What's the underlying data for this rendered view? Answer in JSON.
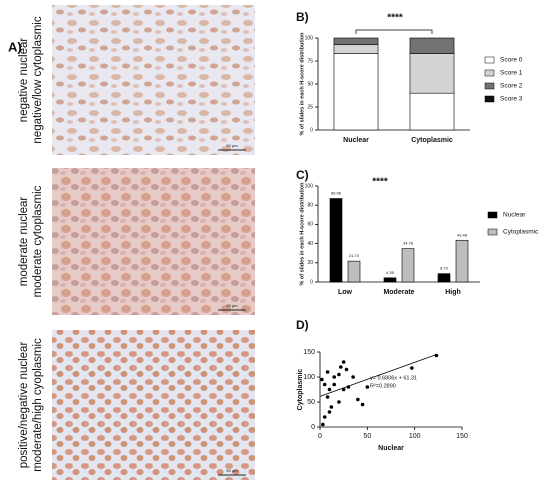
{
  "panel_a": {
    "label": "A)",
    "images": [
      {
        "caption": [
          "negative nuclear",
          "negative/low cytoplasmic"
        ],
        "scale_bar": "50 µm"
      },
      {
        "caption": [
          "moderate nuclear",
          "moderate cytoplasmic"
        ],
        "scale_bar": "50 µm"
      },
      {
        "caption": [
          "positive/negative nuclear",
          "moderate/high cyoplasmic"
        ],
        "scale_bar": "50 µm"
      }
    ]
  },
  "chart_data": [
    {
      "type": "stacked_bar",
      "panel_label": "B)",
      "annotation": "****",
      "y_label": "% of slides in each H-score distribution",
      "categories": [
        "Nuclear",
        "Cytoplasmic"
      ],
      "series": [
        {
          "name": "Score 0",
          "color": "#ffffff",
          "values": [
            83,
            40
          ]
        },
        {
          "name": "Score 1",
          "color": "#d4d4d4",
          "values": [
            10,
            43
          ]
        },
        {
          "name": "Score 2",
          "color": "#737373",
          "values": [
            7,
            17
          ]
        },
        {
          "name": "Score 3",
          "color": "#111111",
          "values": [
            0,
            0
          ]
        }
      ],
      "ylim": [
        0,
        100
      ],
      "yticks": [
        0,
        25,
        50,
        75,
        100
      ]
    },
    {
      "type": "bar",
      "panel_label": "C)",
      "annotation": "****",
      "y_label": "% of slides in each H-score distribution",
      "categories": [
        "Low",
        "Moderate",
        "High"
      ],
      "series": [
        {
          "name": "Nuclear",
          "color": "#000000",
          "values": [
            86.96,
            4.35,
            8.7
          ],
          "value_labels": [
            "86.96",
            "4.35",
            "8.70"
          ]
        },
        {
          "name": "Cytoplasmic",
          "color": "#bdbdbd",
          "values": [
            21.74,
            34.78,
            43.48
          ],
          "value_labels": [
            "21.74",
            "34.78",
            "43.48"
          ]
        }
      ],
      "ylim": [
        0,
        100
      ],
      "yticks": [
        0,
        20,
        40,
        60,
        80,
        100
      ]
    },
    {
      "type": "scatter",
      "panel_label": "D)",
      "x_label": "Nuclear",
      "y_label": "Cytoplasmic",
      "x": [
        3,
        5,
        2,
        8,
        10,
        10,
        12,
        15,
        15,
        20,
        22,
        25,
        28,
        20,
        25,
        30,
        35,
        40,
        45,
        50,
        97,
        123,
        5,
        8
      ],
      "y": [
        5,
        20,
        95,
        60,
        30,
        75,
        40,
        85,
        100,
        105,
        120,
        130,
        115,
        50,
        75,
        80,
        100,
        55,
        45,
        80,
        118,
        143,
        85,
        110
      ],
      "color": "#000000",
      "trendline": {
        "slope": 0.6806,
        "intercept": 61.31
      },
      "annotations": [
        "y= 0.6806x + 61.31",
        "R²=0.2890"
      ],
      "xlim": [
        0,
        150
      ],
      "xticks": [
        0,
        50,
        100,
        150
      ],
      "ylim": [
        0,
        150
      ],
      "yticks": [
        0,
        50,
        100,
        150
      ]
    }
  ]
}
